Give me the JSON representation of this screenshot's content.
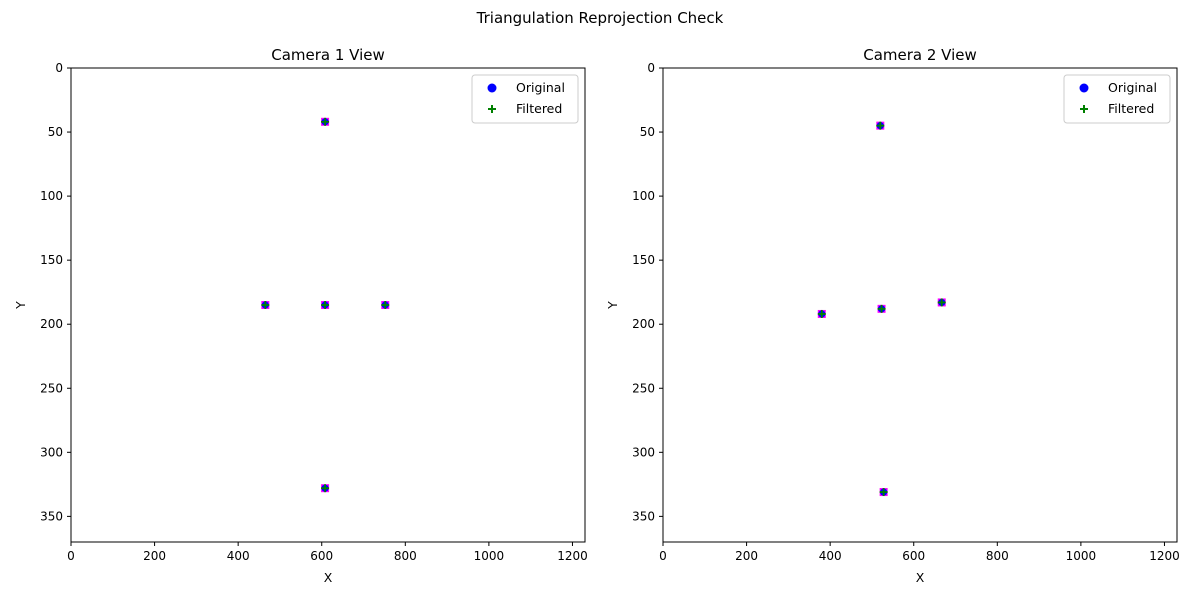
{
  "figure": {
    "suptitle": "Triangulation Reprojection Check"
  },
  "legend_labels": {
    "original": "Original",
    "filtered": "Filtered"
  },
  "colors": {
    "original": "#0000ff",
    "filtered": "#008000",
    "reprojection": "#ff00ff",
    "axes": "#000000",
    "legend_border": "#cccccc"
  },
  "chart_data": [
    {
      "type": "scatter",
      "title": "Camera 1 View",
      "xlabel": "X",
      "ylabel": "Y",
      "xlim": [
        0,
        1230
      ],
      "ylim": [
        370,
        0
      ],
      "y_inverted": true,
      "xticks": [
        0,
        200,
        400,
        600,
        800,
        1000,
        1200
      ],
      "yticks": [
        0,
        50,
        100,
        150,
        200,
        250,
        300,
        350
      ],
      "grid": false,
      "legend_position": "top-right",
      "series": [
        {
          "name": "Original",
          "marker": "circle",
          "points": [
            [
              608,
              42
            ],
            [
              465,
              185
            ],
            [
              608,
              185
            ],
            [
              752,
              185
            ],
            [
              608,
              328
            ]
          ]
        },
        {
          "name": "Filtered",
          "marker": "plus",
          "points": [
            [
              608,
              42
            ],
            [
              465,
              185
            ],
            [
              608,
              185
            ],
            [
              752,
              185
            ],
            [
              608,
              328
            ]
          ]
        }
      ],
      "reprojected_markers": [
        [
          608,
          42
        ],
        [
          465,
          185
        ],
        [
          608,
          185
        ],
        [
          752,
          185
        ],
        [
          608,
          328
        ]
      ]
    },
    {
      "type": "scatter",
      "title": "Camera 2 View",
      "xlabel": "X",
      "ylabel": "Y",
      "xlim": [
        0,
        1230
      ],
      "ylim": [
        370,
        0
      ],
      "y_inverted": true,
      "xticks": [
        0,
        200,
        400,
        600,
        800,
        1000,
        1200
      ],
      "yticks": [
        0,
        50,
        100,
        150,
        200,
        250,
        300,
        350
      ],
      "grid": false,
      "legend_position": "top-right",
      "series": [
        {
          "name": "Original",
          "marker": "circle",
          "points": [
            [
              520,
              45
            ],
            [
              380,
              192
            ],
            [
              523,
              188
            ],
            [
              667,
              183
            ],
            [
              528,
              331
            ]
          ]
        },
        {
          "name": "Filtered",
          "marker": "plus",
          "points": [
            [
              520,
              45
            ],
            [
              380,
              192
            ],
            [
              523,
              188
            ],
            [
              667,
              183
            ],
            [
              528,
              331
            ]
          ]
        }
      ],
      "reprojected_markers": [
        [
          520,
          45
        ],
        [
          380,
          192
        ],
        [
          523,
          188
        ],
        [
          667,
          183
        ],
        [
          528,
          331
        ]
      ]
    }
  ]
}
